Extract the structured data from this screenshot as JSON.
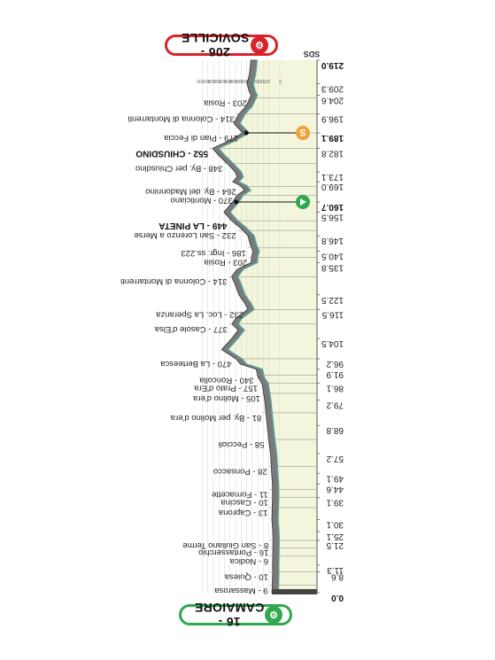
{
  "finish_sign": {
    "label": "206 - SOVICILLE",
    "icon": "cycling-icon"
  },
  "start_sign": {
    "label": "16 - CAMAIORE",
    "icon": "cycling-icon"
  },
  "header_abbr": "SDS",
  "colors": {
    "profile_fill": "#7a7a7a",
    "profile_band": "#f3f6dc",
    "profile_line": "#5aa7a3",
    "finish": "#d8232a",
    "start": "#2fa84f",
    "sprint": "#f0a23b",
    "km_marker": "#444444"
  },
  "chart_data": {
    "type": "area",
    "title": "",
    "orientation": "rotated-180",
    "km_range": [
      0,
      219
    ],
    "elevation_ticks": [
      0,
      100,
      150,
      200,
      250,
      300,
      350,
      400,
      450,
      500,
      550,
      600,
      650,
      700
    ],
    "profile": [
      {
        "km": 0.0,
        "alt": 16
      },
      {
        "km": 3.0,
        "alt": 12
      },
      {
        "km": 8.6,
        "alt": 9
      },
      {
        "km": 11.3,
        "alt": 10
      },
      {
        "km": 15.0,
        "alt": 8
      },
      {
        "km": 21.5,
        "alt": 6
      },
      {
        "km": 25.1,
        "alt": 8
      },
      {
        "km": 30.1,
        "alt": 16
      },
      {
        "km": 35.0,
        "alt": 13
      },
      {
        "km": 39.1,
        "alt": 10
      },
      {
        "km": 44.6,
        "alt": 11
      },
      {
        "km": 49.1,
        "alt": 18
      },
      {
        "km": 57.2,
        "alt": 28
      },
      {
        "km": 63.0,
        "alt": 45
      },
      {
        "km": 68.8,
        "alt": 58
      },
      {
        "km": 74.0,
        "alt": 70
      },
      {
        "km": 79.2,
        "alt": 81
      },
      {
        "km": 86.1,
        "alt": 105
      },
      {
        "km": 88.5,
        "alt": 140
      },
      {
        "km": 91.9,
        "alt": 157
      },
      {
        "km": 94.0,
        "alt": 300
      },
      {
        "km": 96.2,
        "alt": 340
      },
      {
        "km": 98.5,
        "alt": 420
      },
      {
        "km": 100.0,
        "alt": 470
      },
      {
        "km": 104.5,
        "alt": 380
      },
      {
        "km": 108.0,
        "alt": 320
      },
      {
        "km": 110.5,
        "alt": 377
      },
      {
        "km": 113.0,
        "alt": 340
      },
      {
        "km": 116.5,
        "alt": 232
      },
      {
        "km": 119.0,
        "alt": 260
      },
      {
        "km": 122.5,
        "alt": 314
      },
      {
        "km": 127.0,
        "alt": 350
      },
      {
        "km": 130.0,
        "alt": 380
      },
      {
        "km": 133.0,
        "alt": 330
      },
      {
        "km": 135.8,
        "alt": 203
      },
      {
        "km": 138.0,
        "alt": 200
      },
      {
        "km": 140.5,
        "alt": 186
      },
      {
        "km": 143.0,
        "alt": 210
      },
      {
        "km": 146.8,
        "alt": 232
      },
      {
        "km": 150.0,
        "alt": 300
      },
      {
        "km": 153.0,
        "alt": 380
      },
      {
        "km": 156.5,
        "alt": 449
      },
      {
        "km": 160.7,
        "alt": 370
      },
      {
        "km": 163.5,
        "alt": 330
      },
      {
        "km": 165.5,
        "alt": 264
      },
      {
        "km": 167.5,
        "alt": 300
      },
      {
        "km": 169.0,
        "alt": 370
      },
      {
        "km": 171.0,
        "alt": 330
      },
      {
        "km": 173.1,
        "alt": 348
      },
      {
        "km": 176.5,
        "alt": 420
      },
      {
        "km": 180.0,
        "alt": 500
      },
      {
        "km": 182.8,
        "alt": 552
      },
      {
        "km": 185.5,
        "alt": 420
      },
      {
        "km": 189.1,
        "alt": 279
      },
      {
        "km": 193.0,
        "alt": 360
      },
      {
        "km": 196.9,
        "alt": 314
      },
      {
        "km": 200.0,
        "alt": 250
      },
      {
        "km": 204.6,
        "alt": 203
      },
      {
        "km": 206.0,
        "alt": 220
      },
      {
        "km": 209.3,
        "alt": 240
      },
      {
        "km": 213.0,
        "alt": 220
      },
      {
        "km": 216.0,
        "alt": 212
      },
      {
        "km": 219.0,
        "alt": 206
      }
    ],
    "km_labels": [
      {
        "km": 0.0,
        "label": "0.0",
        "bold": true
      },
      {
        "km": 8.6,
        "label": "8.6"
      },
      {
        "km": 11.3,
        "label": "11.3"
      },
      {
        "km": 21.5,
        "label": "21.5"
      },
      {
        "km": 25.1,
        "label": "25.1"
      },
      {
        "km": 30.1,
        "label": "30.1"
      },
      {
        "km": 39.1,
        "label": "39.1"
      },
      {
        "km": 44.6,
        "label": "44.6"
      },
      {
        "km": 49.1,
        "label": "49.1"
      },
      {
        "km": 57.2,
        "label": "57.2"
      },
      {
        "km": 68.8,
        "label": "68.8"
      },
      {
        "km": 79.2,
        "label": "79.2"
      },
      {
        "km": 86.1,
        "label": "86.1"
      },
      {
        "km": 91.9,
        "label": "91.9"
      },
      {
        "km": 96.2,
        "label": "96.2"
      },
      {
        "km": 104.5,
        "label": "104.5"
      },
      {
        "km": 116.5,
        "label": "116.5"
      },
      {
        "km": 122.5,
        "label": "122.5"
      },
      {
        "km": 135.8,
        "label": "135.8"
      },
      {
        "km": 140.5,
        "label": "140.5"
      },
      {
        "km": 146.8,
        "label": "146.8"
      },
      {
        "km": 156.5,
        "label": "156.5"
      },
      {
        "km": 160.7,
        "label": "160.7",
        "bold": true
      },
      {
        "km": 169.0,
        "label": "169.0"
      },
      {
        "km": 173.1,
        "label": "173.1"
      },
      {
        "km": 182.8,
        "label": "182.8"
      },
      {
        "km": 189.1,
        "label": "189.1",
        "bold": true
      },
      {
        "km": 196.9,
        "label": "196.9"
      },
      {
        "km": 204.6,
        "label": "204.6"
      },
      {
        "km": 209.3,
        "label": "209.3"
      },
      {
        "km": 219.0,
        "label": "219.0",
        "bold": true
      }
    ],
    "towns": [
      {
        "km": 3.0,
        "label": "9 - Massarosa"
      },
      {
        "km": 8.6,
        "label": "10 - Quiesa"
      },
      {
        "km": 15.0,
        "label": "6 - Nodica"
      },
      {
        "km": 18.5,
        "label": "16 - Pontasserchio"
      },
      {
        "km": 21.5,
        "label": "8 - San Giuliano Terme"
      },
      {
        "km": 35.0,
        "label": "13 - Caprona"
      },
      {
        "km": 39.1,
        "label": "10 - Cascina"
      },
      {
        "km": 42.5,
        "label": "11 - Fornacette"
      },
      {
        "km": 52.0,
        "label": "28 - Ponsacco"
      },
      {
        "km": 63.0,
        "label": "58 - Peccioli"
      },
      {
        "km": 74.0,
        "label": "81 - By. per Molino d'era"
      },
      {
        "km": 82.0,
        "label": "105 - Molino d'era"
      },
      {
        "km": 86.1,
        "label": "157 - Prato d'Era"
      },
      {
        "km": 89.5,
        "label": "340 - Roncolla"
      },
      {
        "km": 96.2,
        "label": "470 - La Berteesca"
      },
      {
        "km": 110.5,
        "label": "377 - Casole d'Elsa"
      },
      {
        "km": 116.5,
        "label": "232 - Loc. La Speranza"
      },
      {
        "km": 130.0,
        "label": "314 - Colonna di Montarrenti"
      },
      {
        "km": 138.0,
        "label": "203 - Rosia"
      },
      {
        "km": 141.8,
        "label": "186 - Ingr. ss.223"
      },
      {
        "km": 149.0,
        "label": "232 - San Lorenzo a Merse"
      },
      {
        "km": 153.0,
        "label": "449 - LA PINETA",
        "bold": true
      },
      {
        "km": 163.5,
        "label": "370 - Monticiano"
      },
      {
        "km": 167.0,
        "label": "264 - By. del Madonnino"
      },
      {
        "km": 176.5,
        "label": "348 - By. per Chiusdino"
      },
      {
        "km": 182.8,
        "label": "552 - CHIUSDINO",
        "bold": true
      },
      {
        "km": 189.1,
        "label": "279 - Pian di Feccia"
      },
      {
        "km": 196.9,
        "label": "314 - Colonna di Montarrenti"
      },
      {
        "km": 203.5,
        "label": "203 - Rosia"
      }
    ],
    "markers": [
      {
        "km": 160.7,
        "type": "gpm",
        "icon": "green-flag-icon"
      },
      {
        "km": 189.1,
        "type": "sprint",
        "icon": "sprint-s-icon",
        "label": "S"
      }
    ]
  }
}
